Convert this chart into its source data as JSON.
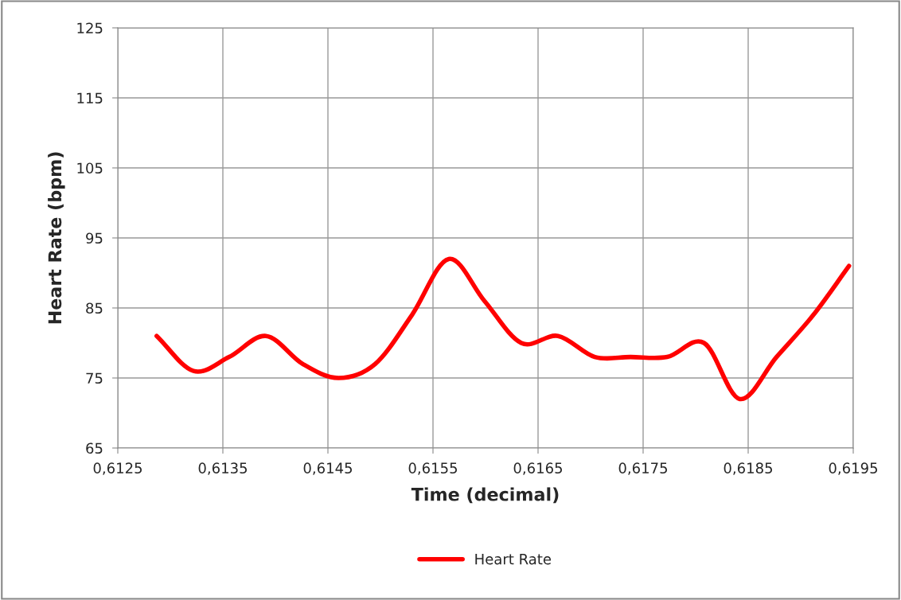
{
  "chart_data": {
    "type": "line",
    "xlabel": "Time (decimal)",
    "ylabel": "Heart Rate (bpm)",
    "x": [
      0.61287,
      0.61322,
      0.61356,
      0.61391,
      0.61426,
      0.6146,
      0.61495,
      0.6153,
      0.61565,
      0.61599,
      0.61634,
      0.61669,
      0.61704,
      0.61738,
      0.61773,
      0.61808,
      0.61842,
      0.61877,
      0.61912,
      0.61946
    ],
    "series": [
      {
        "name": "Heart Rate",
        "color": "#ff0000",
        "values": [
          81,
          76,
          78,
          81,
          77,
          75,
          77,
          84,
          92,
          86,
          80,
          81,
          78,
          78,
          78,
          80,
          72,
          78,
          84,
          91
        ]
      }
    ],
    "xlim": [
      0.6125,
      0.6195
    ],
    "xticks": [
      {
        "value": 0.6125,
        "label": "0,6125"
      },
      {
        "value": 0.6135,
        "label": "0,6135"
      },
      {
        "value": 0.6145,
        "label": "0,6145"
      },
      {
        "value": 0.6155,
        "label": "0,6155"
      },
      {
        "value": 0.6165,
        "label": "0,6165"
      },
      {
        "value": 0.6175,
        "label": "0,6175"
      },
      {
        "value": 0.6185,
        "label": "0,6185"
      },
      {
        "value": 0.6195,
        "label": "0,6195"
      }
    ],
    "ylim": [
      65,
      125
    ],
    "yticks": [
      65,
      75,
      85,
      95,
      105,
      115,
      125
    ],
    "grid": true,
    "legend": "bottom",
    "marker": "none",
    "line_style": "solid"
  }
}
